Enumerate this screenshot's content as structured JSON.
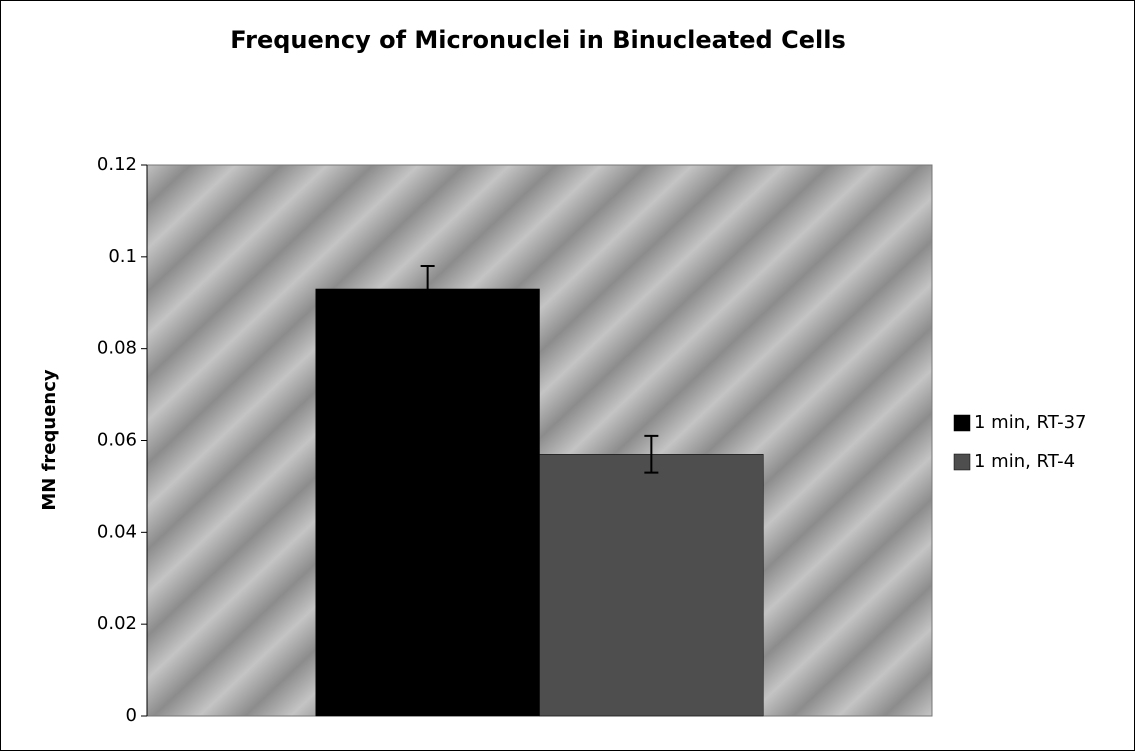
{
  "chart_data": {
    "type": "bar",
    "title": "Frequency of Micronuclei in Binucleated Cells",
    "y_label": "MN frequency",
    "categories": [
      null
    ],
    "series": [
      {
        "name": "1 min, RT-37",
        "color": "#000000",
        "values": [
          0.093
        ],
        "errors": [
          0.005
        ]
      },
      {
        "name": "1 min, RT-4",
        "color": "#4e4e4e",
        "values": [
          0.057
        ],
        "errors": [
          0.004
        ]
      }
    ],
    "ylim": [
      0,
      0.12
    ],
    "yticks": [
      0,
      0.02,
      0.04,
      0.06,
      0.08,
      0.1,
      0.12
    ],
    "grid": false,
    "legend": "right"
  }
}
